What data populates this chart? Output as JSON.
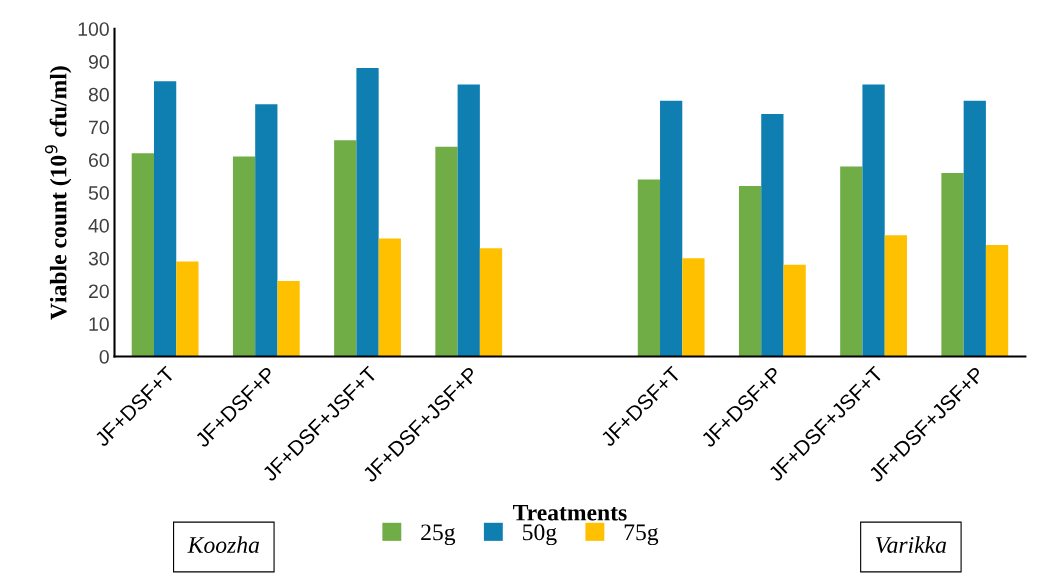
{
  "chart_data": {
    "type": "bar",
    "xlabel": "Treatments",
    "ylabel": "Viable count (10$^{9}$ cfu/ml)",
    "categories": [
      "JF+DSF+T",
      "JF+DSF+P",
      "JF+DSF+JSF+T",
      "JF+DSF+JSF+P",
      null,
      "JF+DSF+T",
      "JF+DSF+P",
      "JF+DSF+JSF+T",
      "JF+DSF+JSF+P"
    ],
    "series": [
      {
        "name": "25g",
        "color": "#70ad47",
        "values": [
          62,
          61,
          66,
          64,
          null,
          54,
          52,
          58,
          56
        ]
      },
      {
        "name": "50g",
        "color": "#0f7fb2",
        "values": [
          84,
          77,
          88,
          83,
          null,
          78,
          74,
          83,
          78
        ]
      },
      {
        "name": "75g",
        "color": "#ffc000",
        "values": [
          29,
          23,
          36,
          33,
          null,
          30,
          28,
          37,
          34
        ]
      }
    ],
    "ylim": [
      0,
      100
    ],
    "yticks": [
      0,
      10,
      20,
      30,
      40,
      50,
      60,
      70,
      80,
      90,
      100
    ],
    "grid": false,
    "legend": "bottom",
    "annotations": [
      "Koozha",
      "Varikka"
    ]
  }
}
